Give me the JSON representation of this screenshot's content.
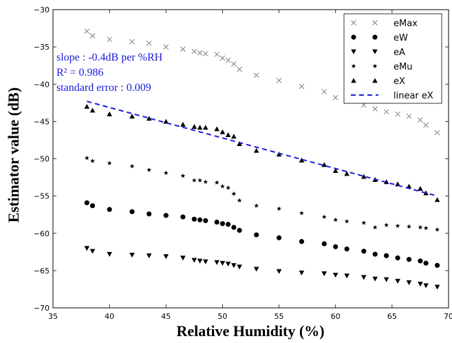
{
  "chart_data": {
    "type": "scatter",
    "xlabel": "Relative Humidity (%)",
    "ylabel": "Estimator value (dB)",
    "xlim": [
      35,
      70
    ],
    "ylim": [
      -70,
      -30
    ],
    "xticks": [
      "35",
      "40",
      "45",
      "50",
      "55",
      "60",
      "65",
      "70"
    ],
    "yticks": [
      "−30",
      "−35",
      "−40",
      "−45",
      "−50",
      "−55",
      "−60",
      "−65",
      "−70"
    ],
    "grid": false,
    "legend_position": "top-right",
    "annotations": [
      "slope : -0.4dB per %RH",
      "R² = 0.986",
      "standard error : 0.009"
    ],
    "x": [
      38,
      38.5,
      40,
      42,
      43.5,
      45,
      46.5,
      47.5,
      48,
      48.5,
      49.5,
      50,
      50.5,
      51,
      51.5,
      53,
      55,
      57,
      59,
      60,
      61,
      62.5,
      63.5,
      64.5,
      65.5,
      66.5,
      67.5,
      68,
      69
    ],
    "series": [
      {
        "name": "eMax",
        "marker": "x",
        "color": "#808080",
        "values": [
          -32.9,
          -33.5,
          -34.0,
          -34.3,
          -34.5,
          -35.0,
          -35.3,
          -35.6,
          -35.8,
          -35.9,
          -36.0,
          -36.5,
          -36.8,
          -37.3,
          -38.0,
          -38.8,
          -39.5,
          -40.3,
          -41.0,
          -41.8,
          -42.3,
          -42.8,
          -43.3,
          -43.7,
          -44.0,
          -44.3,
          -44.8,
          -45.5,
          -46.5
        ]
      },
      {
        "name": "eW",
        "marker": "circle",
        "color": "#000000",
        "values": [
          -55.9,
          -56.3,
          -56.8,
          -57.1,
          -57.4,
          -57.6,
          -57.8,
          -58.1,
          -58.2,
          -58.3,
          -58.5,
          -58.7,
          -58.8,
          -59.2,
          -59.6,
          -60.2,
          -60.6,
          -61.1,
          -61.4,
          -61.8,
          -62.1,
          -62.4,
          -62.8,
          -63.0,
          -63.3,
          -63.5,
          -63.7,
          -64.0,
          -64.3
        ]
      },
      {
        "name": "eA",
        "marker": "triangle-down",
        "color": "#000000",
        "values": [
          -62.0,
          -62.4,
          -62.8,
          -62.9,
          -63.0,
          -63.1,
          -63.3,
          -63.6,
          -63.7,
          -63.8,
          -63.9,
          -64.0,
          -64.1,
          -64.3,
          -64.5,
          -64.8,
          -65.1,
          -65.3,
          -65.4,
          -65.6,
          -65.7,
          -65.9,
          -66.1,
          -66.2,
          -66.4,
          -66.6,
          -66.8,
          -67.0,
          -67.2
        ]
      },
      {
        "name": "eMu",
        "marker": "star",
        "color": "#000000",
        "values": [
          -49.9,
          -50.3,
          -50.6,
          -51.0,
          -51.5,
          -51.9,
          -52.3,
          -52.9,
          -52.9,
          -53.1,
          -53.2,
          -53.7,
          -53.9,
          -54.7,
          -55.6,
          -56.3,
          -56.7,
          -57.3,
          -57.8,
          -58.2,
          -58.4,
          -58.6,
          -59.2,
          -58.9,
          -59.0,
          -59.1,
          -59.2,
          -59.3,
          -59.5
        ]
      },
      {
        "name": "eX",
        "marker": "triangle-up",
        "color": "#000000",
        "values": [
          -43.0,
          -43.5,
          -44.0,
          -44.3,
          -44.6,
          -45.0,
          -45.4,
          -45.7,
          -45.8,
          -45.8,
          -46.0,
          -46.4,
          -46.8,
          -47.0,
          -48.0,
          -48.9,
          -49.4,
          -50.2,
          -50.8,
          -51.6,
          -52.0,
          -52.4,
          -52.8,
          -53.1,
          -53.4,
          -53.7,
          -54.0,
          -54.6,
          -55.5
        ]
      },
      {
        "name": "linear eX",
        "marker": "dashed-line",
        "color": "#1a1adc",
        "x": [
          38,
          69
        ],
        "values": [
          -42.3,
          -55.0
        ]
      }
    ]
  }
}
